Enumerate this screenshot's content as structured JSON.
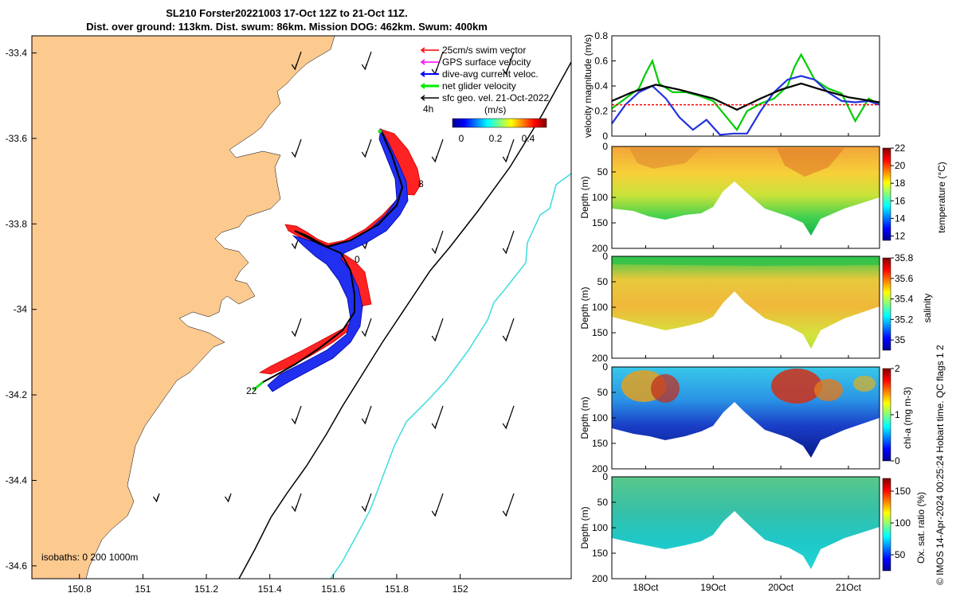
{
  "title": {
    "line1": "SL210 Forster20221003 17-Oct 12Z to 21-Oct 11Z.",
    "line2": "Dist. over ground: 113km. Dist. swum: 86km. Mission DOG: 462km. Swum: 400km"
  },
  "map": {
    "lon_ticks": [
      "150.8",
      "151",
      "151.2",
      "151.4",
      "151.6",
      "151.8",
      "152"
    ],
    "lat_ticks": [
      "-33.4",
      "-33.6",
      "-33.8",
      "-34",
      "-34.2",
      "-34.4",
      "-34.6"
    ],
    "xlim": [
      150.65,
      152.35
    ],
    "ylim": [
      -34.63,
      -33.36
    ],
    "legend": [
      {
        "label": "25cm/s swim vector",
        "color": "#ff0000"
      },
      {
        "label": "GPS surface velocity",
        "color": "#ff00ff"
      },
      {
        "label": "dive-avg current veloc.",
        "color": "#0000ff"
      },
      {
        "label": "net glider velocity",
        "color": "#00ff00"
      },
      {
        "label": "sfc geo. vel. 21-Oct-2022",
        "color": "#000000"
      }
    ],
    "scale_label": "4h",
    "colorbar_unit": "(m/s)",
    "colorbar_ticks": [
      "0",
      "0.2",
      "0.4"
    ],
    "day_labels": [
      "8",
      "0",
      "22"
    ],
    "isobaths_label": "isobaths: 0   200  1000m",
    "colors": {
      "land": "#fcc98f",
      "isobath200": "#000000",
      "isobath1000": "#3ddcdc"
    }
  },
  "credit": "© IMOS 14-Apr-2024 00:25:24 Hobart time. QC flags 1  2",
  "chart_data": [
    {
      "type": "line",
      "title": "velocity magnitude",
      "ylabel": "velocity magnitude (m/s)",
      "ylim": [
        0,
        0.8
      ],
      "yticks": [
        "0",
        "0.2",
        "0.4",
        "0.6",
        "0.8"
      ],
      "x_days": [
        17.5,
        21.46
      ],
      "series": [
        {
          "name": "net glider velocity",
          "color": "#00cc00",
          "x": [
            17.5,
            17.7,
            17.9,
            18.0,
            18.1,
            18.2,
            18.4,
            18.6,
            18.8,
            19.0,
            19.2,
            19.35,
            19.5,
            19.7,
            19.9,
            20.1,
            20.2,
            20.3,
            20.4,
            20.5,
            20.7,
            20.9,
            21.1,
            21.3,
            21.46
          ],
          "values": [
            0.22,
            0.3,
            0.38,
            0.5,
            0.6,
            0.42,
            0.35,
            0.35,
            0.32,
            0.28,
            0.15,
            0.05,
            0.2,
            0.26,
            0.3,
            0.4,
            0.55,
            0.65,
            0.55,
            0.45,
            0.38,
            0.34,
            0.12,
            0.3,
            0.25
          ]
        },
        {
          "name": "dive-avg current",
          "color": "#2233dd",
          "x": [
            17.5,
            17.7,
            17.9,
            18.1,
            18.3,
            18.5,
            18.7,
            18.9,
            19.1,
            19.3,
            19.5,
            19.7,
            19.9,
            20.1,
            20.3,
            20.5,
            20.7,
            20.9,
            21.1,
            21.3,
            21.46
          ],
          "values": [
            0.1,
            0.25,
            0.35,
            0.4,
            0.3,
            0.15,
            0.05,
            0.13,
            0.01,
            0.02,
            0.02,
            0.2,
            0.35,
            0.45,
            0.48,
            0.45,
            0.35,
            0.28,
            0.27,
            0.28,
            0.25
          ]
        },
        {
          "name": "sfc geo. vel.",
          "color": "#000000",
          "x": [
            17.5,
            17.8,
            18.15,
            18.5,
            19.0,
            19.35,
            19.7,
            20.0,
            20.3,
            20.6,
            21.0,
            21.46
          ],
          "values": [
            0.28,
            0.35,
            0.41,
            0.37,
            0.3,
            0.21,
            0.3,
            0.37,
            0.42,
            0.37,
            0.31,
            0.27
          ]
        },
        {
          "name": "swim 25cm/s",
          "color": "#ff0000",
          "x": [
            17.5,
            21.46
          ],
          "values": [
            0.25,
            0.25
          ]
        }
      ]
    },
    {
      "type": "heatmap",
      "variable": "temperature",
      "clabel": "temperature (°C)",
      "ylabel": "Depth (m)",
      "ylim": [
        200,
        0
      ],
      "yticks": [
        "0",
        "50",
        "100",
        "150",
        "200"
      ],
      "crange": [
        11.5,
        22
      ],
      "cticks": [
        "12",
        "14",
        "16",
        "18",
        "20",
        "22"
      ]
    },
    {
      "type": "heatmap",
      "variable": "salinity",
      "clabel": "salinity",
      "ylabel": "Depth (m)",
      "ylim": [
        200,
        0
      ],
      "yticks": [
        "0",
        "50",
        "100",
        "150",
        "200"
      ],
      "crange": [
        34.9,
        35.8
      ],
      "cticks": [
        "35",
        "35.2",
        "35.4",
        "35.6",
        "35.8"
      ]
    },
    {
      "type": "heatmap",
      "variable": "chl-a",
      "clabel": "chl-a (mg m-3)",
      "ylabel": "Depth (m)",
      "ylim": [
        200,
        0
      ],
      "yticks": [
        "0",
        "50",
        "100",
        "150",
        "200"
      ],
      "crange": [
        0,
        2
      ],
      "cticks": [
        "0",
        "1",
        "2"
      ]
    },
    {
      "type": "heatmap",
      "variable": "oxygen",
      "clabel": "Ox. sat. ratio (%)",
      "ylabel": "Depth (m)",
      "ylim": [
        200,
        0
      ],
      "yticks": [
        "0",
        "50",
        "100",
        "150",
        "200"
      ],
      "crange": [
        25,
        170
      ],
      "cticks": [
        "50",
        "100",
        "150"
      ]
    },
    {
      "type": "axis",
      "xticklabels": [
        "18Oct",
        "19Oct",
        "20Oct",
        "21Oct"
      ],
      "xtick_days": [
        18,
        19,
        20,
        21
      ]
    }
  ]
}
